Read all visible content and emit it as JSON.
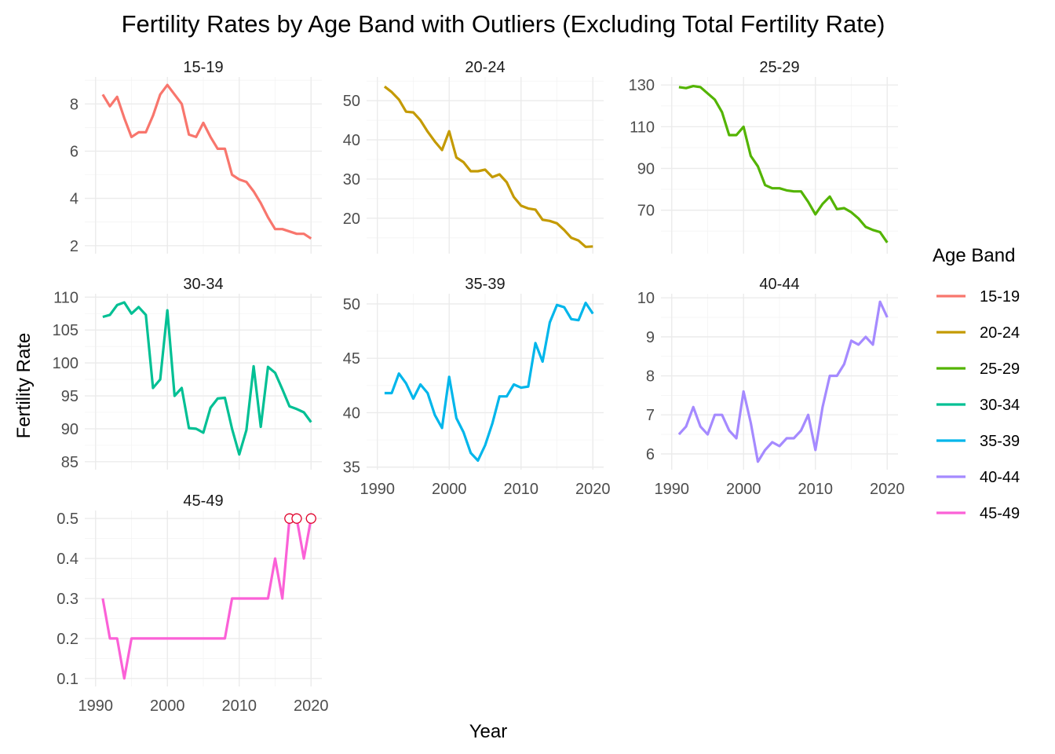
{
  "chart_data": {
    "type": "line",
    "title": "Fertility Rates by Age Band with Outliers (Excluding Total Fertility Rate)",
    "xlabel": "Year",
    "ylabel": "Fertility Rate",
    "legend": {
      "title": "Age Band",
      "placement": "right"
    },
    "grid": true,
    "x": [
      1991,
      1992,
      1993,
      1994,
      1995,
      1996,
      1997,
      1998,
      1999,
      2000,
      2001,
      2002,
      2003,
      2004,
      2005,
      2006,
      2007,
      2008,
      2009,
      2010,
      2011,
      2012,
      2013,
      2014,
      2015,
      2016,
      2017,
      2018,
      2019,
      2020
    ],
    "xlim": [
      1990,
      2020
    ],
    "xticks": [
      1990,
      2000,
      2010,
      2020
    ],
    "series": [
      {
        "name": "15-19",
        "color": "#F8766D",
        "ylim": [
          2,
          8.8
        ],
        "yticks": [
          2,
          4,
          6,
          8
        ],
        "values": [
          8.4,
          7.9,
          8.3,
          7.4,
          6.6,
          6.8,
          6.8,
          7.5,
          8.4,
          8.8,
          8.4,
          8.0,
          6.7,
          6.6,
          7.2,
          6.6,
          6.1,
          6.1,
          5.0,
          4.8,
          4.7,
          4.3,
          3.8,
          3.2,
          2.7,
          2.7,
          2.6,
          2.5,
          2.5,
          2.3
        ]
      },
      {
        "name": "20-24",
        "color": "#C49A00",
        "ylim": [
          13,
          54
        ],
        "yticks": [
          20,
          30,
          40,
          50
        ],
        "values": [
          53.6,
          52.2,
          50.3,
          47.2,
          47.0,
          45.0,
          42.1,
          39.6,
          37.4,
          42.2,
          35.5,
          34.3,
          32.0,
          32.0,
          32.4,
          30.5,
          31.2,
          29.2,
          25.4,
          23.2,
          22.5,
          22.2,
          19.6,
          19.3,
          18.7,
          17.0,
          15.0,
          14.3,
          12.7,
          12.8
        ]
      },
      {
        "name": "25-29",
        "color": "#53B400",
        "ylim": [
          53,
          130
        ],
        "yticks": [
          70,
          90,
          110,
          130
        ],
        "values": [
          129,
          128.5,
          129.5,
          129,
          126,
          123,
          117,
          106,
          106,
          110,
          96,
          91,
          82,
          80.5,
          80.5,
          79.5,
          79,
          79,
          74,
          68,
          73,
          76.5,
          70.5,
          71,
          69,
          66,
          62,
          60.5,
          59.5,
          54.5
        ]
      },
      {
        "name": "30-34",
        "color": "#00C094",
        "ylim": [
          85,
          109.3
        ],
        "yticks": [
          85,
          90,
          95,
          100,
          105,
          110
        ],
        "values": [
          107,
          107.3,
          108.8,
          109.2,
          107.5,
          108.5,
          107.3,
          96.2,
          97.5,
          108,
          95,
          96.2,
          90.1,
          90,
          89.4,
          93.2,
          94.6,
          94.7,
          90,
          86.1,
          89.8,
          99.5,
          90.3,
          99.4,
          98.5,
          96,
          93.4,
          93,
          92.5,
          91
        ]
      },
      {
        "name": "35-39",
        "color": "#00B6EB",
        "ylim": [
          35.5,
          50.2
        ],
        "yticks": [
          35,
          40,
          45,
          50
        ],
        "values": [
          41.8,
          41.8,
          43.6,
          42.7,
          41.3,
          42.6,
          41.8,
          39.8,
          38.6,
          43.3,
          39.5,
          38.2,
          36.3,
          35.6,
          37,
          39,
          41.5,
          41.5,
          42.6,
          42.3,
          42.4,
          46.4,
          44.7,
          48.3,
          49.9,
          49.7,
          48.6,
          48.5,
          50.1,
          49.1
        ]
      },
      {
        "name": "40-44",
        "color": "#A58AFF",
        "ylim": [
          5.8,
          9.9
        ],
        "yticks": [
          6,
          7,
          8,
          9,
          10
        ],
        "values": [
          6.5,
          6.7,
          7.2,
          6.7,
          6.5,
          7,
          7,
          6.6,
          6.4,
          7.6,
          6.8,
          5.8,
          6.1,
          6.3,
          6.2,
          6.4,
          6.4,
          6.6,
          7,
          6.1,
          7.2,
          8,
          8,
          8.3,
          8.9,
          8.8,
          9,
          8.8,
          9.9,
          9.5
        ]
      },
      {
        "name": "45-49",
        "color": "#FB61D7",
        "ylim": [
          0.1,
          0.5
        ],
        "yticks": [
          0.1,
          0.2,
          0.3,
          0.4,
          0.5
        ],
        "values": [
          0.3,
          0.2,
          0.2,
          0.1,
          0.2,
          0.2,
          0.2,
          0.2,
          0.2,
          0.2,
          0.2,
          0.2,
          0.2,
          0.2,
          0.2,
          0.2,
          0.2,
          0.2,
          0.3,
          0.3,
          0.3,
          0.3,
          0.3,
          0.3,
          0.4,
          0.3,
          0.5,
          0.5,
          0.4,
          0.5
        ],
        "outliers": [
          {
            "x": 2017,
            "y": 0.5
          },
          {
            "x": 2018,
            "y": 0.5
          },
          {
            "x": 2020,
            "y": 0.5
          }
        ]
      }
    ]
  }
}
